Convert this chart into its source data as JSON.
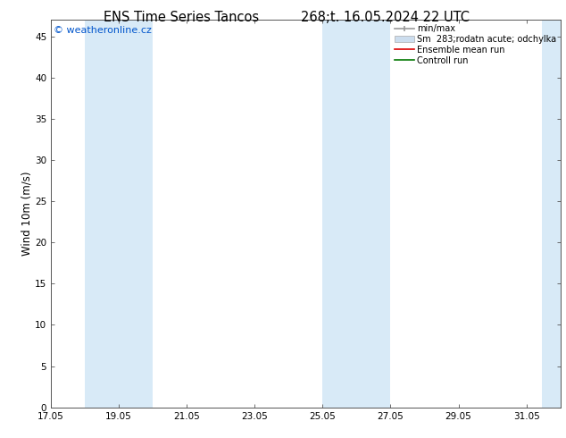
{
  "title_left": "ENS Time Series Tancos",
  "title_right": "268;t. 16.05.2024 22 UTC",
  "ylabel": "Wind 10m (m/s)",
  "watermark": "© weatheronline.cz",
  "watermark_color": "#0055cc",
  "xlim_start": 17.05,
  "xlim_end": 32.05,
  "ylim": [
    0,
    47
  ],
  "yticks": [
    0,
    5,
    10,
    15,
    20,
    25,
    30,
    35,
    40,
    45
  ],
  "xticks": [
    17.05,
    19.05,
    21.05,
    23.05,
    25.05,
    27.05,
    29.05,
    31.05
  ],
  "xtick_labels": [
    "17.05",
    "19.05",
    "21.05",
    "23.05",
    "25.05",
    "27.05",
    "29.05",
    "31.05"
  ],
  "bg_color": "#ffffff",
  "plot_bg_color": "#ffffff",
  "blue_bands": [
    [
      18.05,
      19.05
    ],
    [
      19.05,
      20.05
    ],
    [
      25.05,
      26.05
    ],
    [
      26.05,
      27.05
    ],
    [
      31.5,
      33.0
    ]
  ],
  "band_color": "#d8eaf7",
  "legend_labels": [
    "min/max",
    "Sm  283;rodatn acute; odchylka",
    "Ensemble mean run",
    "Controll run"
  ],
  "legend_colors_line": [
    "#999999",
    "#bbbbbb",
    "#dd0000",
    "#007700"
  ],
  "title_fontsize": 10.5,
  "label_fontsize": 8.5,
  "tick_fontsize": 7.5,
  "watermark_fontsize": 8
}
